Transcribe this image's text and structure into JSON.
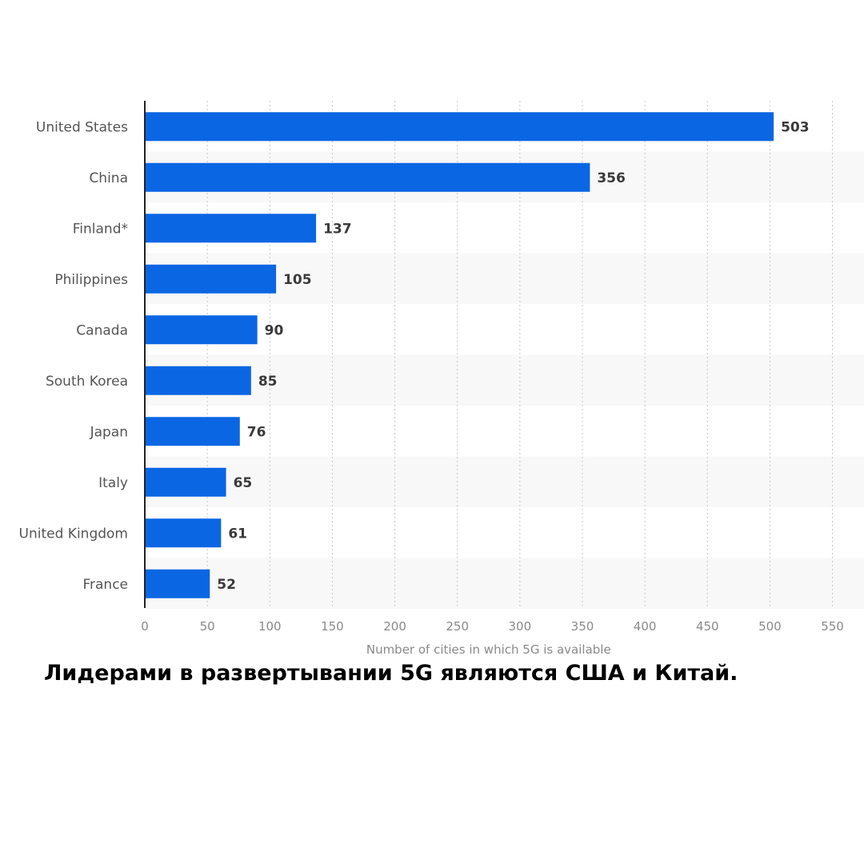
{
  "caption": "Лидерами в развертывании 5G являются США и Китай.",
  "chart_data": {
    "type": "bar",
    "orientation": "horizontal",
    "categories": [
      "United States",
      "China",
      "Finland*",
      "Philippines",
      "Canada",
      "South Korea",
      "Japan",
      "Italy",
      "United Kingdom",
      "France"
    ],
    "values": [
      503,
      356,
      137,
      105,
      90,
      85,
      76,
      65,
      61,
      52
    ],
    "xlabel": "Number of cities in which 5G is available",
    "ylabel": "",
    "xlim": [
      0,
      575
    ],
    "xticks": [
      0,
      50,
      100,
      150,
      200,
      250,
      300,
      350,
      400,
      450,
      500,
      550
    ],
    "grid": "vertical dotted",
    "bar_color": "#0b66e4",
    "band_color": "#f8f8f8"
  }
}
